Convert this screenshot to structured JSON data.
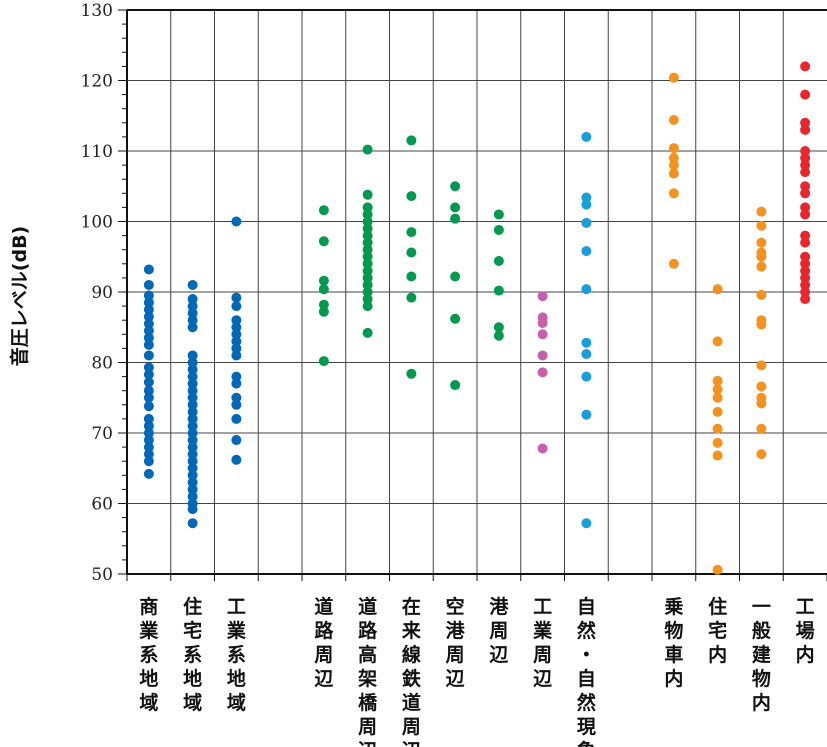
{
  "chart_data": {
    "type": "scatter",
    "ylabel": "音圧レベル(dB)",
    "ylim": [
      50,
      130
    ],
    "yticks": [
      50,
      60,
      70,
      80,
      90,
      100,
      110,
      120,
      130
    ],
    "grid": true,
    "colors": {
      "blue": "#0068b7",
      "green": "#009a4e",
      "purple": "#c65fae",
      "lightblue": "#1a9ed9",
      "orange": "#f5921e",
      "red": "#e8262b"
    },
    "categories": [
      {
        "label": "商業系地域",
        "color": "blue",
        "values": [
          93.2,
          91.0,
          89.5,
          88.5,
          87.5,
          86.5,
          85.5,
          84.5,
          83.5,
          82.5,
          81.0,
          79.3,
          78.3,
          77.2,
          76.0,
          75.0,
          73.8,
          72.0,
          71.0,
          70.0,
          69.0,
          68.0,
          67.0,
          66.0,
          64.2
        ]
      },
      {
        "label": "住宅系地域",
        "color": "blue",
        "values": [
          91.0,
          89.0,
          88.0,
          87.0,
          86.0,
          85.0,
          81.0,
          80.0,
          79.0,
          78.0,
          77.0,
          76.0,
          75.0,
          74.0,
          73.0,
          72.0,
          71.0,
          70.0,
          69.0,
          68.0,
          67.0,
          66.0,
          65.0,
          64.0,
          63.0,
          62.0,
          61.0,
          60.0,
          59.2,
          57.2
        ]
      },
      {
        "label": "工業系地域",
        "color": "blue",
        "values": [
          100.0,
          89.2,
          88.0,
          86.0,
          85.0,
          84.0,
          83.0,
          82.0,
          81.0,
          78.0,
          77.0,
          75.0,
          74.0,
          72.0,
          69.0,
          66.2
        ]
      },
      {
        "label": "",
        "color": "blue",
        "values": []
      },
      {
        "label": "道路周辺",
        "color": "green",
        "values": [
          101.6,
          97.2,
          91.6,
          90.4,
          88.2,
          87.2,
          80.2
        ]
      },
      {
        "label": "道路高架橋周辺",
        "color": "green",
        "values": [
          110.2,
          103.8,
          102.0,
          101.0,
          100.0,
          99.0,
          98.0,
          97.0,
          96.0,
          95.0,
          94.0,
          93.0,
          92.0,
          91.0,
          90.0,
          89.0,
          88.0,
          84.2
        ]
      },
      {
        "label": "在来線鉄道周辺",
        "color": "green",
        "values": [
          111.5,
          103.6,
          98.5,
          95.6,
          92.2,
          89.2,
          78.4
        ]
      },
      {
        "label": "空港周辺",
        "color": "green",
        "values": [
          105.0,
          102.0,
          100.4,
          92.2,
          86.2,
          76.8
        ]
      },
      {
        "label": "港周辺",
        "color": "green",
        "values": [
          101.0,
          98.8,
          94.4,
          90.2,
          85.0,
          83.8
        ]
      },
      {
        "label": "工業周辺",
        "color": "purple",
        "values": [
          89.4,
          86.4,
          85.6,
          84.0,
          81.0,
          78.6,
          67.8
        ]
      },
      {
        "label": "自然・自然現象",
        "color": "lightblue",
        "values": [
          112.0,
          103.4,
          102.4,
          99.8,
          95.8,
          90.4,
          82.8,
          81.2,
          78.0,
          72.6,
          57.2
        ]
      },
      {
        "label": "",
        "color": "blue",
        "values": []
      },
      {
        "label": "乗物車内",
        "color": "orange",
        "values": [
          120.4,
          114.4,
          110.4,
          109.0,
          108.0,
          106.8,
          104.0,
          94.0
        ]
      },
      {
        "label": "住宅内",
        "color": "orange",
        "values": [
          90.4,
          83.0,
          77.4,
          76.2,
          75.0,
          73.0,
          70.6,
          68.6,
          66.8,
          50.6
        ]
      },
      {
        "label": "一般建物内",
        "color": "orange",
        "values": [
          101.4,
          99.4,
          97.0,
          95.6,
          95.0,
          93.6,
          89.6,
          86.0,
          85.4,
          79.6,
          76.6,
          75.0,
          74.2,
          70.6,
          67.0
        ]
      },
      {
        "label": "工場内",
        "color": "red",
        "values": [
          122.0,
          118.0,
          114.0,
          113.0,
          110.0,
          109.0,
          108.0,
          107.0,
          105.0,
          104.0,
          102.0,
          101.0,
          98.0,
          97.0,
          95.0,
          94.0,
          93.0,
          92.0,
          91.0,
          90.0,
          89.0
        ]
      }
    ]
  }
}
